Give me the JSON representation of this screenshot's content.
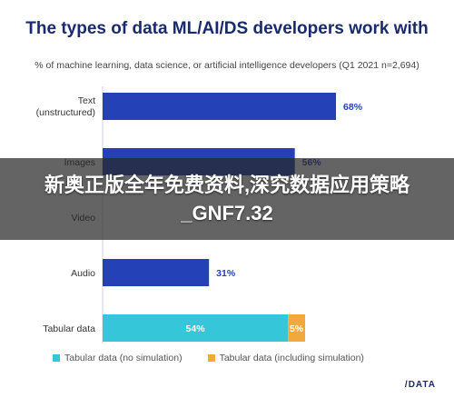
{
  "chart_data": {
    "type": "bar",
    "orientation": "horizontal",
    "title": "The types of data ML/AI/DS developers work with",
    "subtitle": "% of machine learning, data science, or artificial intelligence developers (Q1 2021 n=2,694)",
    "categories": [
      "Text (unstructured)",
      "Images",
      "Video",
      "Audio",
      "Tabular data"
    ],
    "series": [
      {
        "name": "Tabular data (no simulation)",
        "values": [
          68,
          56,
          null,
          31,
          54
        ]
      },
      {
        "name": "Tabular data (including simulation)",
        "values": [
          null,
          null,
          null,
          null,
          5
        ]
      }
    ],
    "value_labels": [
      "68%",
      "56%",
      "",
      "31%",
      "54%",
      "5%"
    ],
    "colors": {
      "primary": "#2441b8",
      "no_simulation": "#35c6d9",
      "including_simulation": "#f2a93b"
    },
    "xlim": [
      0,
      100
    ],
    "grid": false,
    "legend_position": "bottom"
  },
  "overlay": {
    "text": "新奥正版全年免费资料,深究数据应用策略_GNF7.32"
  },
  "brand": "/DATA"
}
